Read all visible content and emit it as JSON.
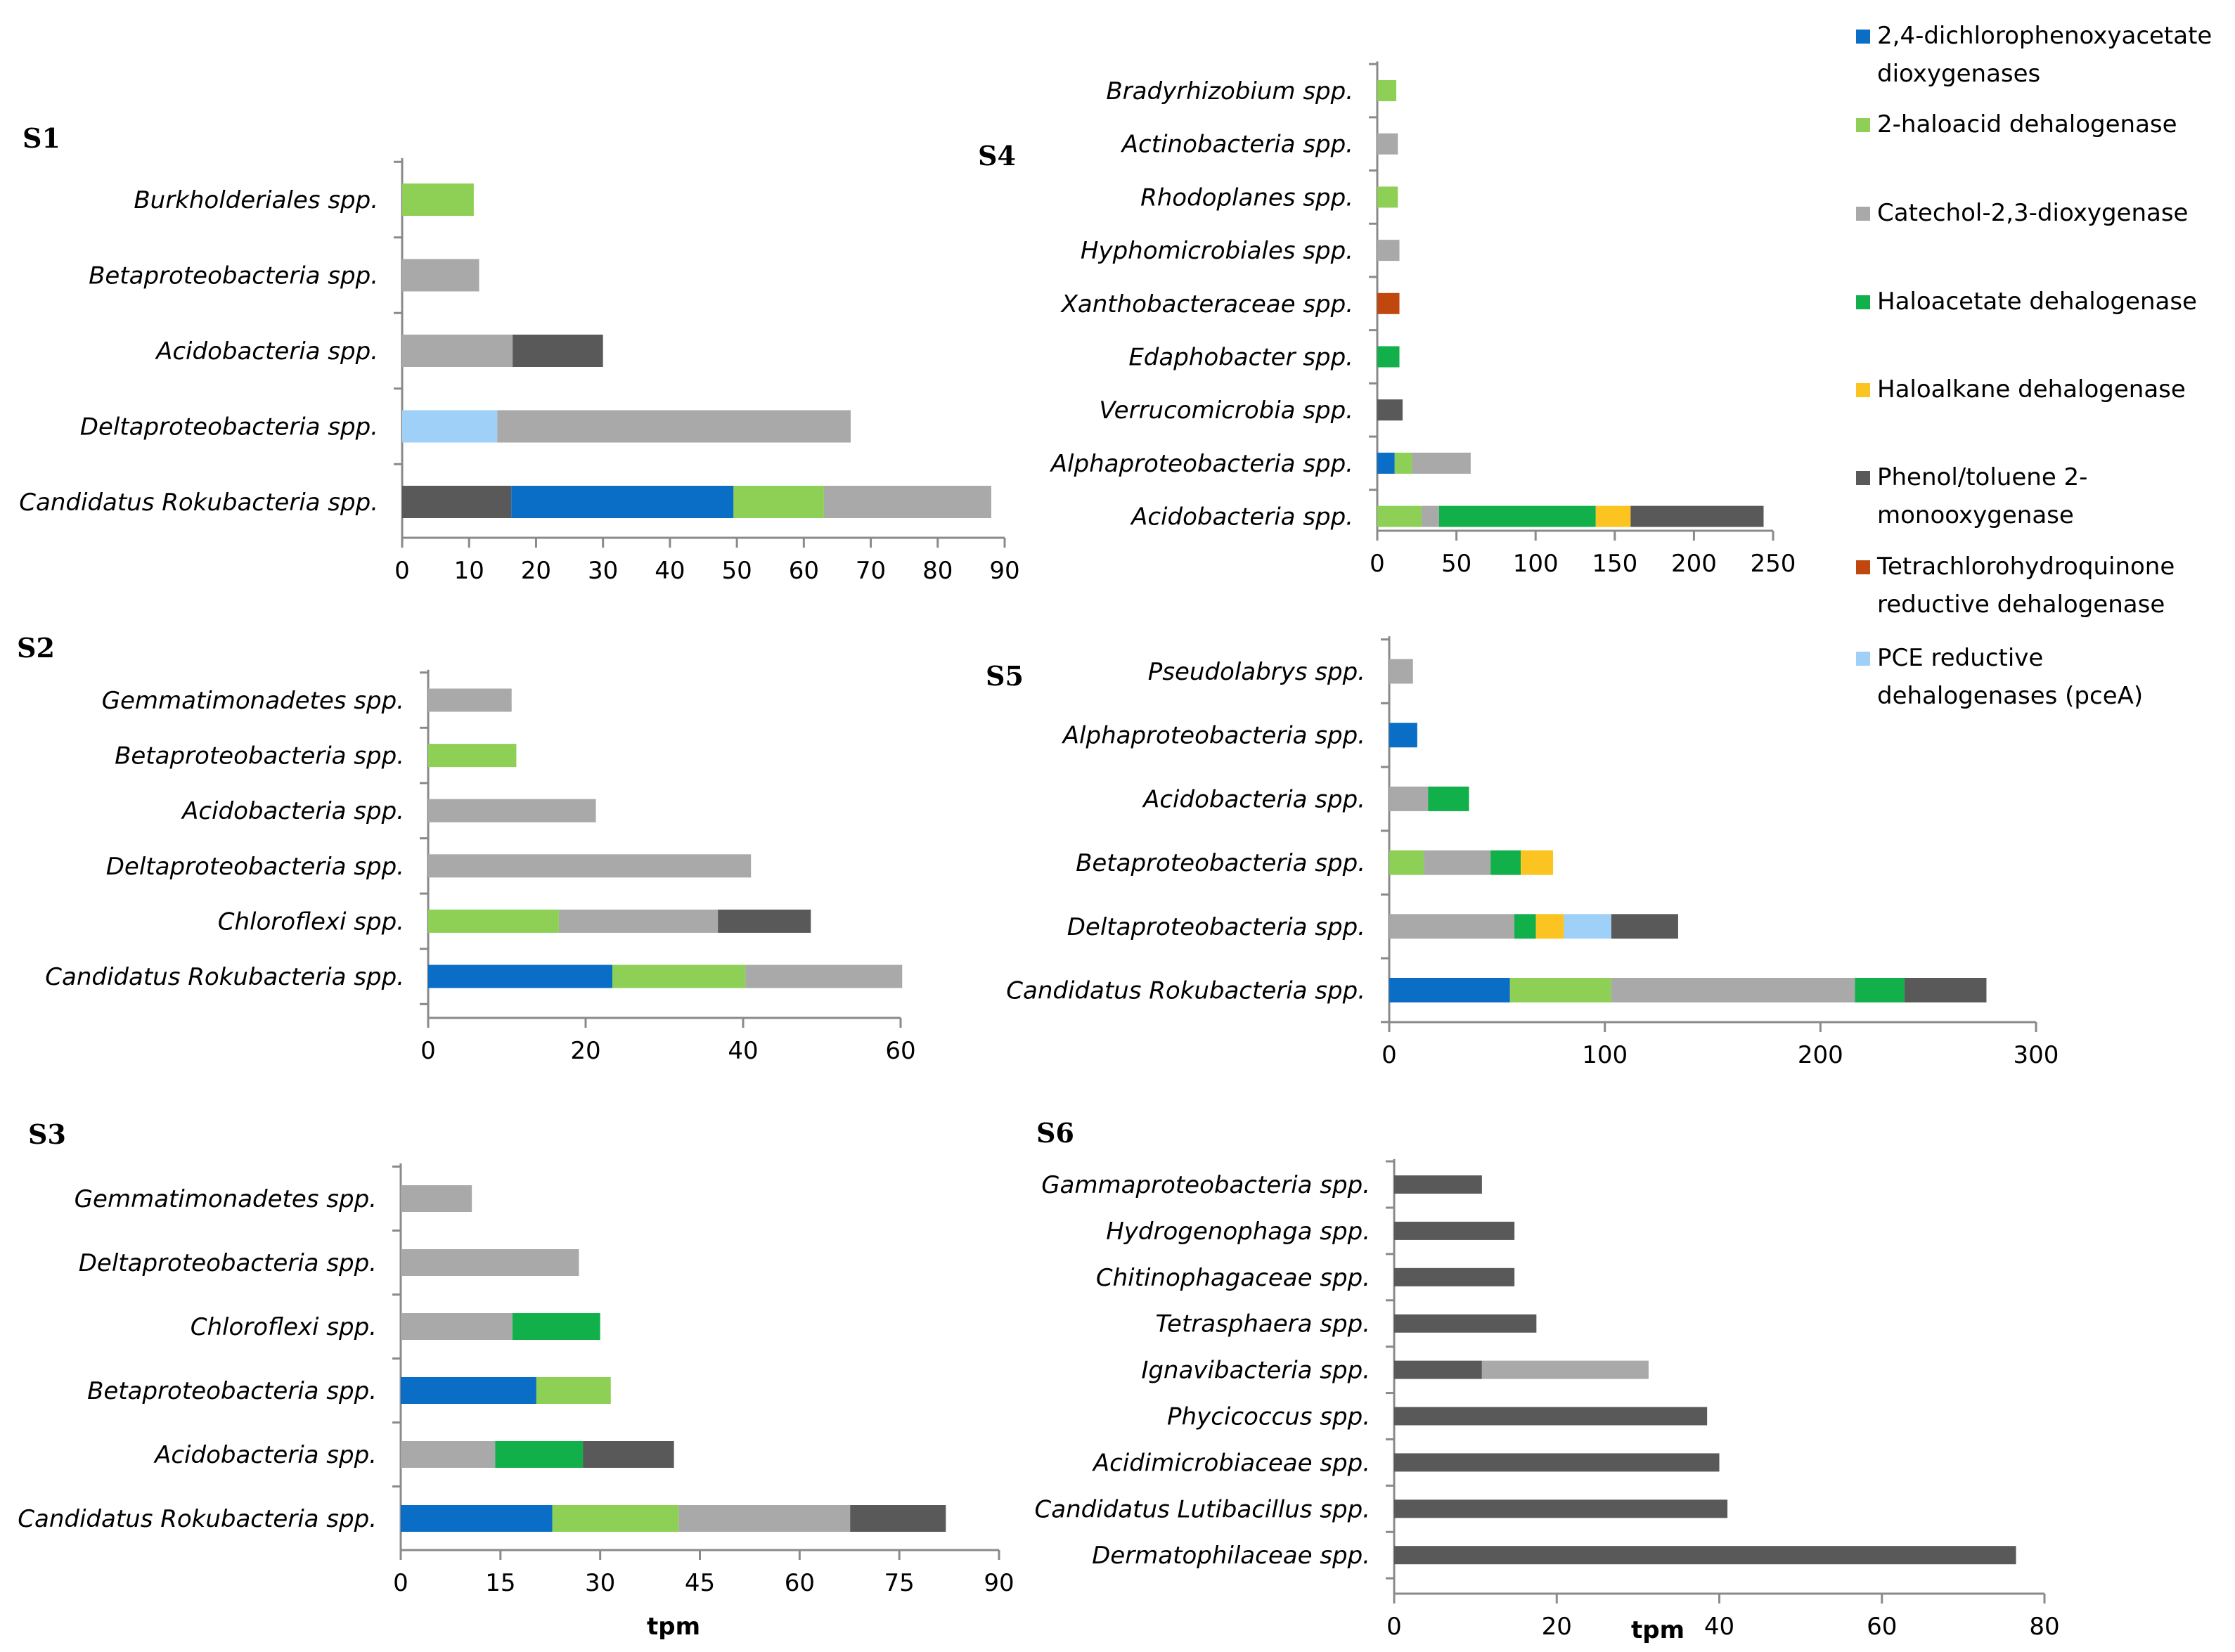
{
  "colors": {
    "dicamba": "#0a6ec6",
    "haloacid": "#8ed055",
    "catechol": "#a9a9a9",
    "haloacetate": "#12b04a",
    "haloalkane": "#fcc420",
    "phenol": "#595959",
    "tetrachloro": "#c0480e",
    "pce": "#9fd0f8"
  },
  "legend": [
    {
      "key": "dicamba",
      "lines": [
        "2,4-dichlorophenoxyacetate",
        "dioxygenases"
      ],
      "icon": "legend-square-icon"
    },
    {
      "key": "haloacid",
      "lines": [
        "2-haloacid dehalogenase"
      ],
      "icon": "legend-square-icon"
    },
    {
      "key": "catechol",
      "lines": [
        "Catechol-2,3-dioxygenase"
      ],
      "icon": "legend-square-icon"
    },
    {
      "key": "haloacetate",
      "lines": [
        "Haloacetate dehalogenase"
      ],
      "icon": "legend-square-icon"
    },
    {
      "key": "haloalkane",
      "lines": [
        "Haloalkane dehalogenase"
      ],
      "icon": "legend-square-icon"
    },
    {
      "key": "phenol",
      "lines": [
        "Phenol/toluene 2-",
        "monooxygenase"
      ],
      "icon": "legend-square-icon"
    },
    {
      "key": "tetrachloro",
      "lines": [
        "Tetrachlorohydroquinone",
        "reductive dehalogenase"
      ],
      "icon": "legend-square-icon"
    },
    {
      "key": "pce",
      "lines": [
        "PCE reductive",
        "dehalogenases (pceA)"
      ],
      "icon": "legend-square-icon"
    }
  ],
  "chart_data": [
    {
      "type": "bar",
      "orientation": "horizontal",
      "stacked": true,
      "title": "S1",
      "xlabel": "",
      "xlim": [
        0,
        90
      ],
      "ticks": [
        0,
        10,
        20,
        30,
        40,
        50,
        60,
        70,
        80,
        90
      ],
      "categories": [
        "Burkholderiales spp.",
        "Betaproteobacteria spp.",
        "Acidobacteria spp.",
        "Deltaproteobacteria spp.",
        "Candidatus Rokubacteria spp."
      ],
      "bars": [
        [
          {
            "key": "haloacid",
            "value": 10.7
          }
        ],
        [
          {
            "key": "catechol",
            "value": 11.5
          }
        ],
        [
          {
            "key": "catechol",
            "value": 16.5
          },
          {
            "key": "phenol",
            "value": 13.5
          }
        ],
        [
          {
            "key": "pce",
            "value": 14.2
          },
          {
            "key": "catechol",
            "value": 52.8
          }
        ],
        [
          {
            "key": "phenol",
            "value": 16.3
          },
          {
            "key": "dicamba",
            "value": 33.2
          },
          {
            "key": "haloacid",
            "value": 13.5
          },
          {
            "key": "catechol",
            "value": 25.0
          }
        ]
      ]
    },
    {
      "type": "bar",
      "orientation": "horizontal",
      "stacked": true,
      "title": "S2",
      "xlabel": "",
      "xlim": [
        0,
        60
      ],
      "ticks": [
        0,
        20,
        40,
        60
      ],
      "categories": [
        "Gemmatimonadetes spp.",
        "Betaproteobacteria spp.",
        "Acidobacteria spp.",
        "Deltaproteobacteria spp.",
        "Chloroflexi spp.",
        "Candidatus Rokubacteria spp."
      ],
      "bars": [
        [
          {
            "key": "catechol",
            "value": 10.6
          }
        ],
        [
          {
            "key": "haloacid",
            "value": 11.2
          }
        ],
        [
          {
            "key": "catechol",
            "value": 21.3
          }
        ],
        [
          {
            "key": "catechol",
            "value": 41.0
          }
        ],
        [
          {
            "key": "haloacid",
            "value": 16.6
          },
          {
            "key": "catechol",
            "value": 20.2
          },
          {
            "key": "phenol",
            "value": 11.8
          }
        ],
        [
          {
            "key": "dicamba",
            "value": 23.4
          },
          {
            "key": "haloacid",
            "value": 16.9
          },
          {
            "key": "catechol",
            "value": 19.9
          }
        ]
      ]
    },
    {
      "type": "bar",
      "orientation": "horizontal",
      "stacked": true,
      "title": "S3",
      "xlabel": "tpm",
      "xlim": [
        0,
        90
      ],
      "ticks": [
        0,
        15,
        30,
        45,
        60,
        75,
        90
      ],
      "categories": [
        "Gemmatimonadetes spp.",
        "Deltaproteobacteria spp.",
        "Chloroflexi spp.",
        "Betaproteobacteria spp.",
        "Acidobacteria spp.",
        "Candidatus Rokubacteria spp."
      ],
      "bars": [
        [
          {
            "key": "catechol",
            "value": 10.7
          }
        ],
        [
          {
            "key": "catechol",
            "value": 26.8
          }
        ],
        [
          {
            "key": "catechol",
            "value": 16.8
          },
          {
            "key": "haloacetate",
            "value": 13.2
          }
        ],
        [
          {
            "key": "dicamba",
            "value": 20.4
          },
          {
            "key": "haloacid",
            "value": 11.2
          }
        ],
        [
          {
            "key": "catechol",
            "value": 14.2
          },
          {
            "key": "haloacetate",
            "value": 13.2
          },
          {
            "key": "phenol",
            "value": 13.7
          }
        ],
        [
          {
            "key": "dicamba",
            "value": 22.8
          },
          {
            "key": "haloacid",
            "value": 19.0
          },
          {
            "key": "catechol",
            "value": 25.8
          },
          {
            "key": "phenol",
            "value": 14.4
          }
        ]
      ]
    },
    {
      "type": "bar",
      "orientation": "horizontal",
      "stacked": true,
      "title": "S4",
      "xlabel": "",
      "xlim": [
        0,
        250
      ],
      "ticks": [
        0,
        50,
        100,
        150,
        200,
        250
      ],
      "categories": [
        "Bradyrhizobium spp.",
        "Actinobacteria spp.",
        "Rhodoplanes spp.",
        "Hyphomicrobiales spp.",
        "Xanthobacteraceae spp.",
        "Edaphobacter spp.",
        "Verrucomicrobia spp.",
        "Alphaproteobacteria spp.",
        "Acidobacteria spp."
      ],
      "bars": [
        [
          {
            "key": "haloacid",
            "value": 12
          }
        ],
        [
          {
            "key": "catechol",
            "value": 13
          }
        ],
        [
          {
            "key": "haloacid",
            "value": 13
          }
        ],
        [
          {
            "key": "catechol",
            "value": 14
          }
        ],
        [
          {
            "key": "tetrachloro",
            "value": 14
          }
        ],
        [
          {
            "key": "haloacetate",
            "value": 14
          }
        ],
        [
          {
            "key": "phenol",
            "value": 16
          }
        ],
        [
          {
            "key": "dicamba",
            "value": 11
          },
          {
            "key": "haloacid",
            "value": 11
          },
          {
            "key": "catechol",
            "value": 37
          }
        ],
        [
          {
            "key": "haloacid",
            "value": 28
          },
          {
            "key": "catechol",
            "value": 11
          },
          {
            "key": "haloacetate",
            "value": 99
          },
          {
            "key": "haloalkane",
            "value": 22
          },
          {
            "key": "phenol",
            "value": 84
          }
        ]
      ]
    },
    {
      "type": "bar",
      "orientation": "horizontal",
      "stacked": true,
      "title": "S5",
      "xlabel": "",
      "xlim": [
        0,
        300
      ],
      "ticks": [
        0,
        100,
        200,
        300
      ],
      "categories": [
        "Pseudolabrys spp.",
        "Alphaproteobacteria spp.",
        "Acidobacteria spp.",
        "Betaproteobacteria spp.",
        "Deltaproteobacteria spp.",
        "Candidatus Rokubacteria spp."
      ],
      "bars": [
        [
          {
            "key": "catechol",
            "value": 11
          }
        ],
        [
          {
            "key": "dicamba",
            "value": 13
          }
        ],
        [
          {
            "key": "catechol",
            "value": 18
          },
          {
            "key": "haloacetate",
            "value": 19
          }
        ],
        [
          {
            "key": "haloacid",
            "value": 16
          },
          {
            "key": "catechol",
            "value": 31
          },
          {
            "key": "haloacetate",
            "value": 14
          },
          {
            "key": "haloalkane",
            "value": 15
          }
        ],
        [
          {
            "key": "catechol",
            "value": 58
          },
          {
            "key": "haloacetate",
            "value": 10
          },
          {
            "key": "haloalkane",
            "value": 13
          },
          {
            "key": "pce",
            "value": 22
          },
          {
            "key": "phenol",
            "value": 31
          }
        ],
        [
          {
            "key": "dicamba",
            "value": 56
          },
          {
            "key": "haloacid",
            "value": 47
          },
          {
            "key": "catechol",
            "value": 113
          },
          {
            "key": "haloacetate",
            "value": 23
          },
          {
            "key": "phenol",
            "value": 38
          }
        ]
      ]
    },
    {
      "type": "bar",
      "orientation": "horizontal",
      "stacked": true,
      "title": "S6",
      "xlabel": "tpm",
      "xlim": [
        0,
        80
      ],
      "ticks": [
        0,
        20,
        40,
        60,
        80
      ],
      "categories": [
        "Gammaproteobacteria spp.",
        "Hydrogenophaga spp.",
        "Chitinophagaceae spp.",
        "Tetrasphaera spp.",
        "Ignavibacteria spp.",
        "Phycicoccus spp.",
        "Acidimicrobiaceae spp.",
        "Candidatus Lutibacillus spp.",
        "Dermatophilaceae spp."
      ],
      "bars": [
        [
          {
            "key": "phenol",
            "value": 10.8
          }
        ],
        [
          {
            "key": "phenol",
            "value": 14.8
          }
        ],
        [
          {
            "key": "phenol",
            "value": 14.8
          }
        ],
        [
          {
            "key": "phenol",
            "value": 17.5
          }
        ],
        [
          {
            "key": "phenol",
            "value": 10.8
          },
          {
            "key": "catechol",
            "value": 20.5
          }
        ],
        [
          {
            "key": "phenol",
            "value": 38.5
          }
        ],
        [
          {
            "key": "phenol",
            "value": 40.0
          }
        ],
        [
          {
            "key": "phenol",
            "value": 41.0
          }
        ],
        [
          {
            "key": "phenol",
            "value": 76.5
          }
        ]
      ]
    }
  ]
}
